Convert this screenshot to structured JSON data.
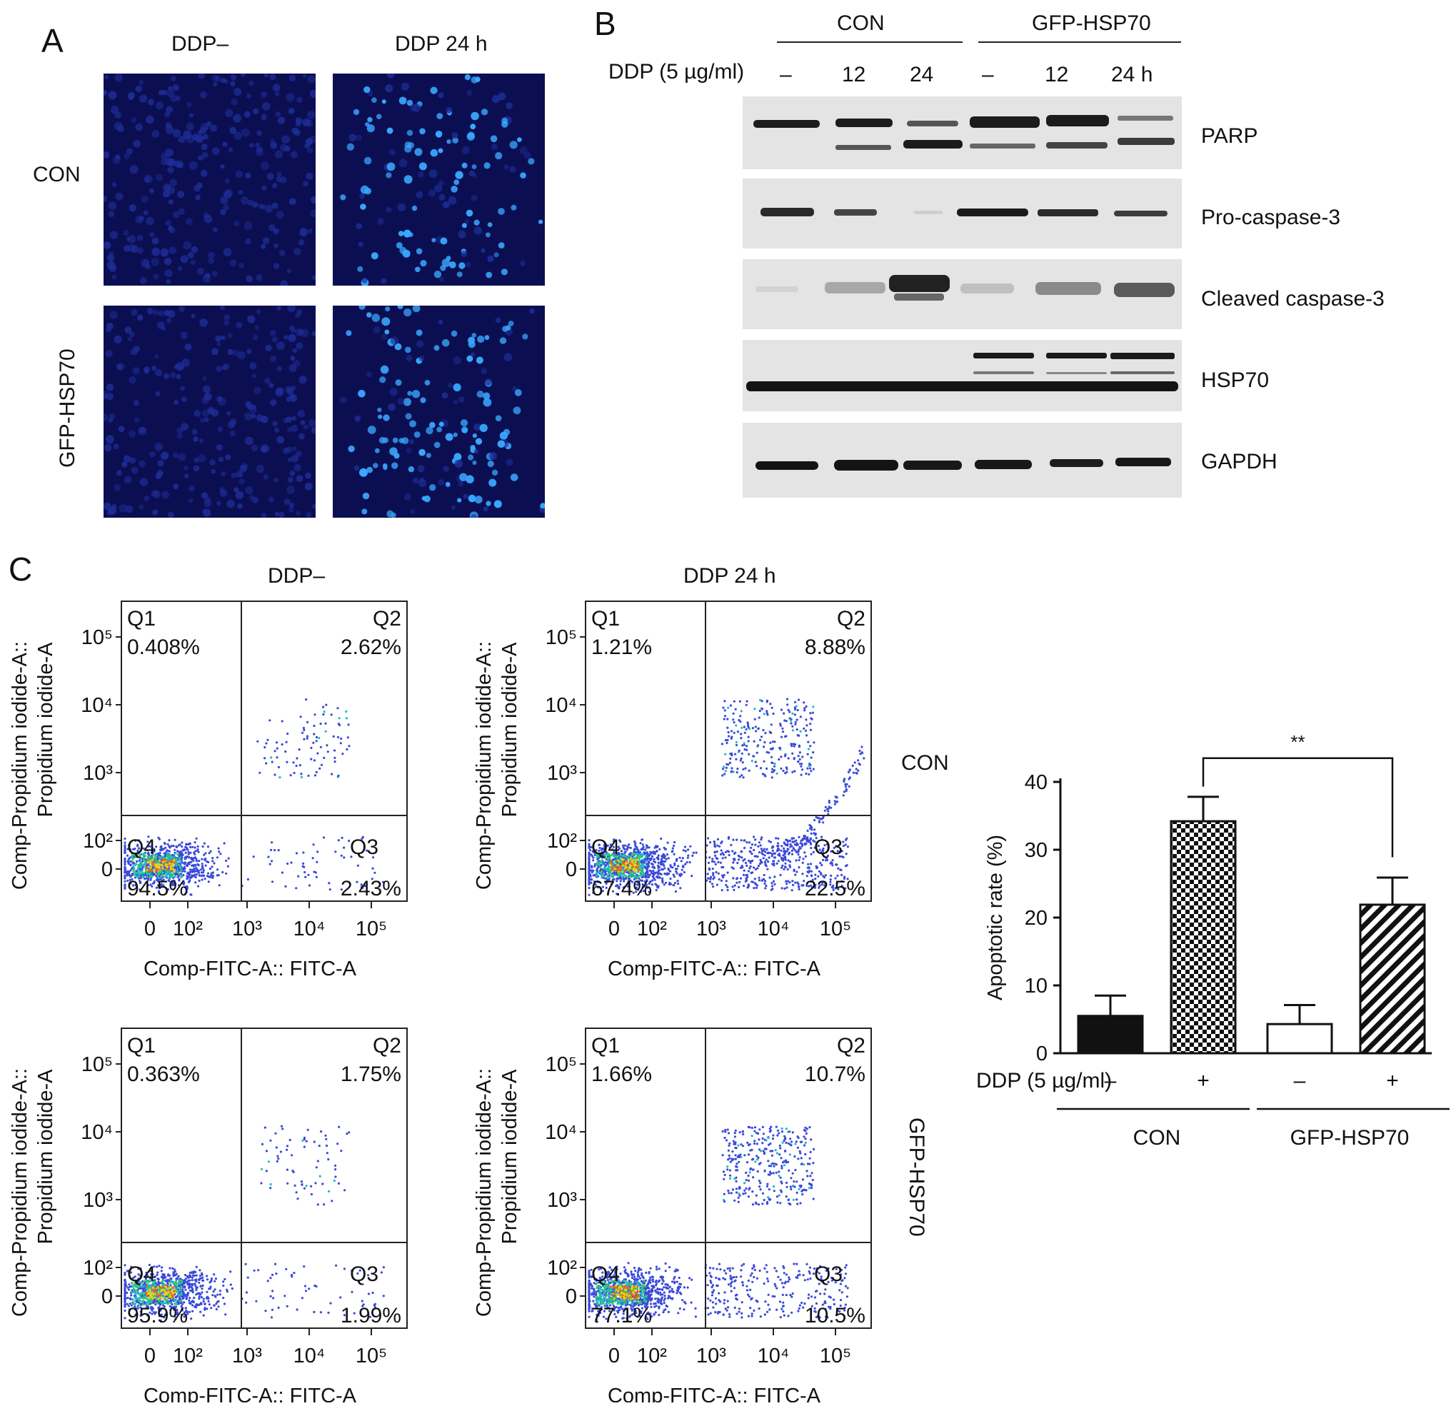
{
  "panel_a": {
    "letter": "A",
    "col_labels": [
      "DDP–",
      "DDP 24 h"
    ],
    "row_labels": [
      "CON",
      "GFP-HSP70"
    ]
  },
  "panel_b": {
    "letter": "B",
    "group_labels": [
      "CON",
      "GFP-HSP70"
    ],
    "treatment_label": "DDP (5 µg/ml)",
    "lane_labels": [
      "–",
      "12",
      "24",
      "–",
      "12",
      "24 h"
    ],
    "band_labels": [
      "PARP",
      "Pro-caspase-3",
      "Cleaved caspase-3",
      "HSP70",
      "GAPDH"
    ]
  },
  "panel_c": {
    "letter": "C",
    "col_labels": [
      "DDP–",
      "DDP 24 h"
    ],
    "row_labels": [
      "CON",
      "GFP-HSP70"
    ],
    "y_axis_line1": "Comp-Propidium iodide-A::",
    "y_axis_line2": "Propidium iodide-A",
    "x_axis": "Comp-FITC-A:: FITC-A",
    "x_ticks": [
      "0",
      "10²",
      "10³",
      "10⁴",
      "10⁵"
    ],
    "y_ticks": [
      "10⁵",
      "10⁴",
      "10³",
      "10²",
      "0"
    ],
    "plots": [
      {
        "row": "CON",
        "col": "DDP–",
        "Q1": "0.408%",
        "Q2": "2.62%",
        "Q3": "2.43%",
        "Q4": "94.5%"
      },
      {
        "row": "CON",
        "col": "DDP 24 h",
        "Q1": "1.21%",
        "Q2": "8.88%",
        "Q3": "22.5%",
        "Q4": "67.4%"
      },
      {
        "row": "GFP-HSP70",
        "col": "DDP–",
        "Q1": "0.363%",
        "Q2": "1.75%",
        "Q3": "1.99%",
        "Q4": "95.9%"
      },
      {
        "row": "GFP-HSP70",
        "col": "DDP 24 h",
        "Q1": "1.66%",
        "Q2": "10.7%",
        "Q3": "10.5%",
        "Q4": "77.1%"
      }
    ],
    "quadrant_names": [
      "Q1",
      "Q2",
      "Q3",
      "Q4"
    ]
  },
  "chart_data": {
    "type": "bar",
    "ylabel": "Apoptotic rate (%)",
    "ylim": [
      0,
      40
    ],
    "yticks": [
      0,
      10,
      20,
      30,
      40
    ],
    "treatment_label": "DDP (5 µg/ml)",
    "categories": [
      "–",
      "+",
      "–",
      "+"
    ],
    "groups": [
      "CON",
      "GFP-HSP70"
    ],
    "values": [
      5.5,
      34.2,
      4.3,
      21.9
    ],
    "errors": [
      3.0,
      3.6,
      2.8,
      4.0
    ],
    "significance": "**",
    "bar_styles": [
      "solid-black",
      "checkered",
      "white",
      "diagonal-hatch"
    ]
  }
}
